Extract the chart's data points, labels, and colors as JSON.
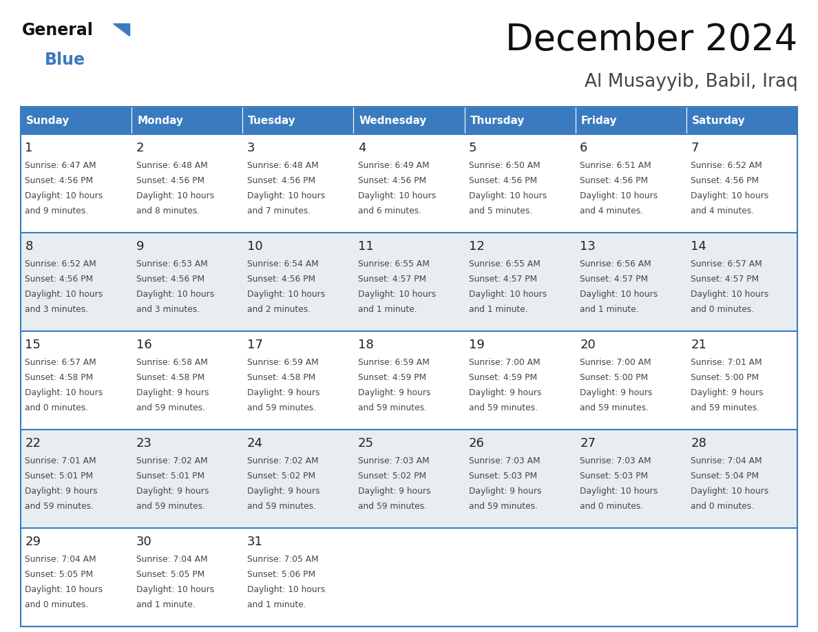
{
  "title": "December 2024",
  "subtitle": "Al Musayyib, Babil, Iraq",
  "days_of_week": [
    "Sunday",
    "Monday",
    "Tuesday",
    "Wednesday",
    "Thursday",
    "Friday",
    "Saturday"
  ],
  "header_bg": "#3a7bbf",
  "header_text": "#ffffff",
  "row_bg_odd": "#ffffff",
  "row_bg_even": "#e8edf2",
  "cell_text_color": "#444444",
  "day_num_color": "#222222",
  "border_color": "#3a7bbf",
  "calendar_data": [
    [
      {
        "day": 1,
        "sunrise": "6:47 AM",
        "sunset": "4:56 PM",
        "dl1": "Daylight: 10 hours",
        "dl2": "and 9 minutes."
      },
      {
        "day": 2,
        "sunrise": "6:48 AM",
        "sunset": "4:56 PM",
        "dl1": "Daylight: 10 hours",
        "dl2": "and 8 minutes."
      },
      {
        "day": 3,
        "sunrise": "6:48 AM",
        "sunset": "4:56 PM",
        "dl1": "Daylight: 10 hours",
        "dl2": "and 7 minutes."
      },
      {
        "day": 4,
        "sunrise": "6:49 AM",
        "sunset": "4:56 PM",
        "dl1": "Daylight: 10 hours",
        "dl2": "and 6 minutes."
      },
      {
        "day": 5,
        "sunrise": "6:50 AM",
        "sunset": "4:56 PM",
        "dl1": "Daylight: 10 hours",
        "dl2": "and 5 minutes."
      },
      {
        "day": 6,
        "sunrise": "6:51 AM",
        "sunset": "4:56 PM",
        "dl1": "Daylight: 10 hours",
        "dl2": "and 4 minutes."
      },
      {
        "day": 7,
        "sunrise": "6:52 AM",
        "sunset": "4:56 PM",
        "dl1": "Daylight: 10 hours",
        "dl2": "and 4 minutes."
      }
    ],
    [
      {
        "day": 8,
        "sunrise": "6:52 AM",
        "sunset": "4:56 PM",
        "dl1": "Daylight: 10 hours",
        "dl2": "and 3 minutes."
      },
      {
        "day": 9,
        "sunrise": "6:53 AM",
        "sunset": "4:56 PM",
        "dl1": "Daylight: 10 hours",
        "dl2": "and 3 minutes."
      },
      {
        "day": 10,
        "sunrise": "6:54 AM",
        "sunset": "4:56 PM",
        "dl1": "Daylight: 10 hours",
        "dl2": "and 2 minutes."
      },
      {
        "day": 11,
        "sunrise": "6:55 AM",
        "sunset": "4:57 PM",
        "dl1": "Daylight: 10 hours",
        "dl2": "and 1 minute."
      },
      {
        "day": 12,
        "sunrise": "6:55 AM",
        "sunset": "4:57 PM",
        "dl1": "Daylight: 10 hours",
        "dl2": "and 1 minute."
      },
      {
        "day": 13,
        "sunrise": "6:56 AM",
        "sunset": "4:57 PM",
        "dl1": "Daylight: 10 hours",
        "dl2": "and 1 minute."
      },
      {
        "day": 14,
        "sunrise": "6:57 AM",
        "sunset": "4:57 PM",
        "dl1": "Daylight: 10 hours",
        "dl2": "and 0 minutes."
      }
    ],
    [
      {
        "day": 15,
        "sunrise": "6:57 AM",
        "sunset": "4:58 PM",
        "dl1": "Daylight: 10 hours",
        "dl2": "and 0 minutes."
      },
      {
        "day": 16,
        "sunrise": "6:58 AM",
        "sunset": "4:58 PM",
        "dl1": "Daylight: 9 hours",
        "dl2": "and 59 minutes."
      },
      {
        "day": 17,
        "sunrise": "6:59 AM",
        "sunset": "4:58 PM",
        "dl1": "Daylight: 9 hours",
        "dl2": "and 59 minutes."
      },
      {
        "day": 18,
        "sunrise": "6:59 AM",
        "sunset": "4:59 PM",
        "dl1": "Daylight: 9 hours",
        "dl2": "and 59 minutes."
      },
      {
        "day": 19,
        "sunrise": "7:00 AM",
        "sunset": "4:59 PM",
        "dl1": "Daylight: 9 hours",
        "dl2": "and 59 minutes."
      },
      {
        "day": 20,
        "sunrise": "7:00 AM",
        "sunset": "5:00 PM",
        "dl1": "Daylight: 9 hours",
        "dl2": "and 59 minutes."
      },
      {
        "day": 21,
        "sunrise": "7:01 AM",
        "sunset": "5:00 PM",
        "dl1": "Daylight: 9 hours",
        "dl2": "and 59 minutes."
      }
    ],
    [
      {
        "day": 22,
        "sunrise": "7:01 AM",
        "sunset": "5:01 PM",
        "dl1": "Daylight: 9 hours",
        "dl2": "and 59 minutes."
      },
      {
        "day": 23,
        "sunrise": "7:02 AM",
        "sunset": "5:01 PM",
        "dl1": "Daylight: 9 hours",
        "dl2": "and 59 minutes."
      },
      {
        "day": 24,
        "sunrise": "7:02 AM",
        "sunset": "5:02 PM",
        "dl1": "Daylight: 9 hours",
        "dl2": "and 59 minutes."
      },
      {
        "day": 25,
        "sunrise": "7:03 AM",
        "sunset": "5:02 PM",
        "dl1": "Daylight: 9 hours",
        "dl2": "and 59 minutes."
      },
      {
        "day": 26,
        "sunrise": "7:03 AM",
        "sunset": "5:03 PM",
        "dl1": "Daylight: 9 hours",
        "dl2": "and 59 minutes."
      },
      {
        "day": 27,
        "sunrise": "7:03 AM",
        "sunset": "5:03 PM",
        "dl1": "Daylight: 10 hours",
        "dl2": "and 0 minutes."
      },
      {
        "day": 28,
        "sunrise": "7:04 AM",
        "sunset": "5:04 PM",
        "dl1": "Daylight: 10 hours",
        "dl2": "and 0 minutes."
      }
    ],
    [
      {
        "day": 29,
        "sunrise": "7:04 AM",
        "sunset": "5:05 PM",
        "dl1": "Daylight: 10 hours",
        "dl2": "and 0 minutes."
      },
      {
        "day": 30,
        "sunrise": "7:04 AM",
        "sunset": "5:05 PM",
        "dl1": "Daylight: 10 hours",
        "dl2": "and 1 minute."
      },
      {
        "day": 31,
        "sunrise": "7:05 AM",
        "sunset": "5:06 PM",
        "dl1": "Daylight: 10 hours",
        "dl2": "and 1 minute."
      },
      null,
      null,
      null,
      null
    ]
  ]
}
